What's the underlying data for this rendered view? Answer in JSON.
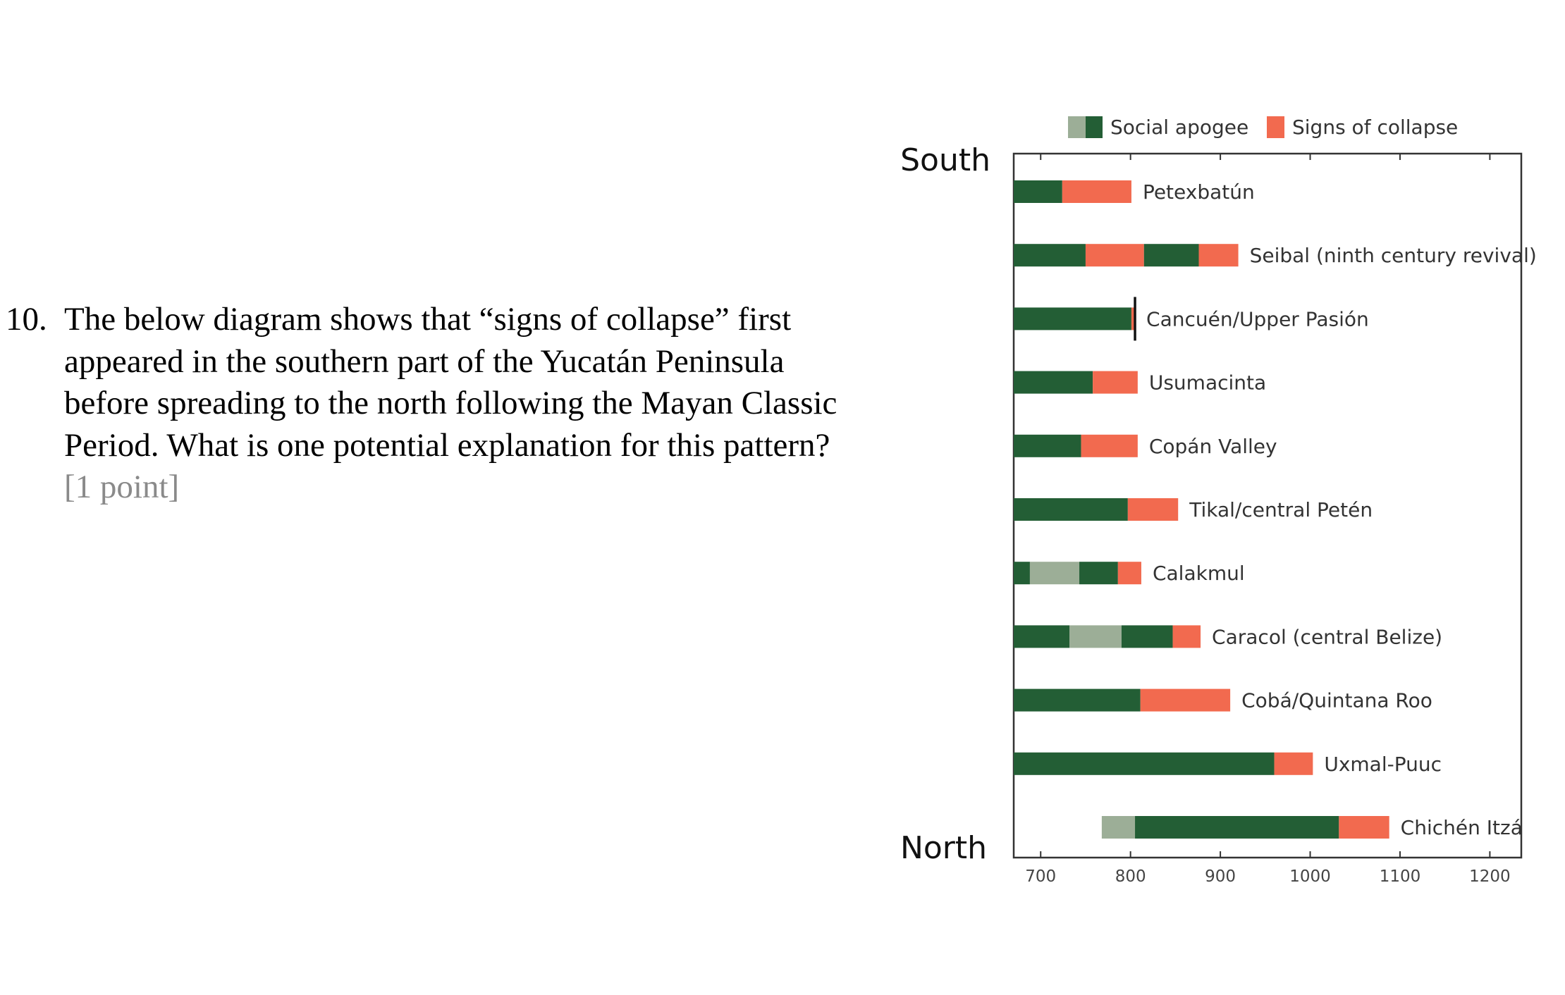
{
  "question": {
    "number": "10.",
    "text": "The below diagram shows that “signs of collapse” first appeared in the southern part of the Yucatán Peninsula before spreading to the north following the Mayan Classic Period. What is one potential explanation for this pattern?",
    "points": "[1 point]"
  },
  "chart_data": {
    "type": "bar",
    "orientation": "horizontal-range",
    "title": "",
    "xlabel": "",
    "ylabel": "",
    "xlim": [
      670,
      1235
    ],
    "x_ticks": [
      700,
      800,
      900,
      1000,
      1100,
      1200
    ],
    "x_tick_labels": [
      "700",
      "800",
      "900",
      "1000",
      "1100",
      "1200"
    ],
    "y_axis_top_label": "South",
    "y_axis_bottom_label": "North",
    "legend": {
      "position": "top",
      "entries": [
        {
          "name": "Social apogee",
          "colors": [
            "#9cae97",
            "#235e35"
          ]
        },
        {
          "name": "Signs of collapse",
          "colors": [
            "#f26a4f"
          ]
        }
      ]
    },
    "colors": {
      "apogee_dark": "#235e35",
      "apogee_light": "#9cae97",
      "collapse": "#f26a4f",
      "axis": "#333333"
    },
    "series": [
      {
        "name": "Petexbatún",
        "segments": [
          {
            "start": 670,
            "end": 724,
            "kind": "apogee"
          },
          {
            "start": 724,
            "end": 801,
            "kind": "collapse"
          }
        ]
      },
      {
        "name": "Seibal (ninth century revival)",
        "segments": [
          {
            "start": 670,
            "end": 750,
            "kind": "apogee"
          },
          {
            "start": 750,
            "end": 815,
            "kind": "collapse"
          },
          {
            "start": 815,
            "end": 876,
            "kind": "apogee"
          },
          {
            "start": 876,
            "end": 920,
            "kind": "collapse"
          }
        ]
      },
      {
        "name": "Cancuén/Upper Pasión",
        "segments": [
          {
            "start": 670,
            "end": 801,
            "kind": "apogee"
          },
          {
            "start": 801,
            "end": 805,
            "kind": "collapse"
          }
        ],
        "marker": 805
      },
      {
        "name": "Usumacinta",
        "segments": [
          {
            "start": 670,
            "end": 758,
            "kind": "apogee"
          },
          {
            "start": 758,
            "end": 808,
            "kind": "collapse"
          }
        ]
      },
      {
        "name": "Copán Valley",
        "segments": [
          {
            "start": 670,
            "end": 745,
            "kind": "apogee"
          },
          {
            "start": 745,
            "end": 808,
            "kind": "collapse"
          }
        ]
      },
      {
        "name": "Tikal/central Petén",
        "segments": [
          {
            "start": 670,
            "end": 797,
            "kind": "apogee"
          },
          {
            "start": 797,
            "end": 853,
            "kind": "collapse"
          }
        ]
      },
      {
        "name": "Calakmul",
        "segments": [
          {
            "start": 670,
            "end": 688,
            "kind": "apogee"
          },
          {
            "start": 688,
            "end": 743,
            "kind": "apogee-light"
          },
          {
            "start": 743,
            "end": 786,
            "kind": "apogee"
          },
          {
            "start": 786,
            "end": 812,
            "kind": "collapse"
          }
        ]
      },
      {
        "name": "Caracol (central Belize)",
        "segments": [
          {
            "start": 670,
            "end": 732,
            "kind": "apogee"
          },
          {
            "start": 732,
            "end": 790,
            "kind": "apogee-light"
          },
          {
            "start": 790,
            "end": 847,
            "kind": "apogee"
          },
          {
            "start": 847,
            "end": 878,
            "kind": "collapse"
          }
        ]
      },
      {
        "name": "Cobá/Quintana Roo",
        "segments": [
          {
            "start": 670,
            "end": 811,
            "kind": "apogee"
          },
          {
            "start": 811,
            "end": 911,
            "kind": "collapse"
          }
        ]
      },
      {
        "name": "Uxmal-Puuc",
        "segments": [
          {
            "start": 670,
            "end": 960,
            "kind": "apogee"
          },
          {
            "start": 960,
            "end": 1003,
            "kind": "collapse"
          }
        ]
      },
      {
        "name": "Chichén Itzá",
        "segments": [
          {
            "start": 768,
            "end": 805,
            "kind": "apogee-light"
          },
          {
            "start": 805,
            "end": 1032,
            "kind": "apogee"
          },
          {
            "start": 1032,
            "end": 1088,
            "kind": "collapse"
          }
        ]
      }
    ]
  }
}
